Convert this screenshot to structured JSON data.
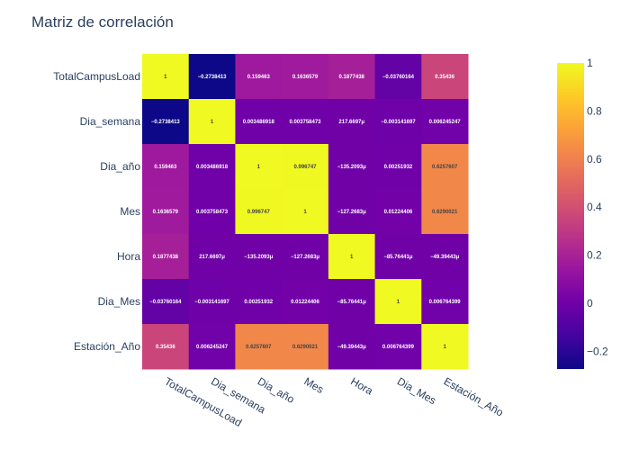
{
  "chart_data": {
    "type": "heatmap",
    "title": "Matriz de correlación",
    "x": [
      "TotalCampusLoad",
      "Dia_semana",
      "Dia_año",
      "Mes",
      "Hora",
      "Dia_Mes",
      "Estación_Año"
    ],
    "y": [
      "TotalCampusLoad",
      "Dia_semana",
      "Dia_año",
      "Mes",
      "Hora",
      "Dia_Mes",
      "Estación_Año"
    ],
    "z": [
      [
        1,
        -0.2738413,
        0.159463,
        0.1636579,
        0.1877438,
        -0.03760164,
        0.35436
      ],
      [
        -0.2738413,
        1,
        0.003486918,
        0.003758473,
        0.0002176697,
        -0.003141697,
        0.006245247
      ],
      [
        0.159463,
        0.003486918,
        1,
        0.996747,
        -0.0001352093,
        0.00251932,
        0.6257607
      ],
      [
        0.1636579,
        0.003758473,
        0.996747,
        1,
        -0.0001272683,
        0.01224406,
        0.6290021
      ],
      [
        0.1877438,
        0.0002176697,
        -0.0001352093,
        -0.0001272683,
        1,
        -8.576441e-05,
        -4.939443e-05
      ],
      [
        -0.03760164,
        -0.003141697,
        0.00251932,
        0.01224406,
        -8.576441e-05,
        1,
        0.006764399
      ],
      [
        0.35436,
        0.006245247,
        0.6257607,
        0.6290021,
        -4.939443e-05,
        0.006764399,
        1
      ]
    ],
    "text": [
      [
        "1",
        "−0.2738413",
        "0.159463",
        "0.1636579",
        "0.1877438",
        "−0.03760164",
        "0.35436"
      ],
      [
        "−0.2738413",
        "1",
        "0.003486918",
        "0.003758473",
        "217.6697μ",
        "−0.003141697",
        "0.006245247"
      ],
      [
        "0.159463",
        "0.003486918",
        "1",
        "0.996747",
        "−135.2093μ",
        "0.00251932",
        "0.6257607"
      ],
      [
        "0.1636579",
        "0.003758473",
        "0.996747",
        "1",
        "−127.2683μ",
        "0.01224406",
        "0.6290021"
      ],
      [
        "0.1877438",
        "217.6697μ",
        "−135.2093μ",
        "−127.2683μ",
        "1",
        "−85.76441μ",
        "−49.39443μ"
      ],
      [
        "−0.03760164",
        "−0.003141697",
        "0.00251932",
        "0.01224406",
        "−85.76441μ",
        "1",
        "0.006764399"
      ],
      [
        "0.35436",
        "0.006245247",
        "0.6257607",
        "0.6290021",
        "−49.39443μ",
        "0.006764399",
        "1"
      ]
    ],
    "zrange": [
      -0.2738413,
      1
    ],
    "colorscale": [
      "#0d0887",
      "#46039f",
      "#7201a8",
      "#9c179e",
      "#bd3786",
      "#d8576b",
      "#ed7953",
      "#fb9f3a",
      "#fdca26",
      "#f0f921"
    ],
    "colorbar_ticks": [
      {
        "value": 1,
        "label": "1"
      },
      {
        "value": 0.8,
        "label": "0.8"
      },
      {
        "value": 0.6,
        "label": "0.6"
      },
      {
        "value": 0.4,
        "label": "0.4"
      },
      {
        "value": 0.2,
        "label": "0.2"
      },
      {
        "value": 0,
        "label": "0"
      },
      {
        "value": -0.2,
        "label": "−0.2"
      }
    ]
  }
}
